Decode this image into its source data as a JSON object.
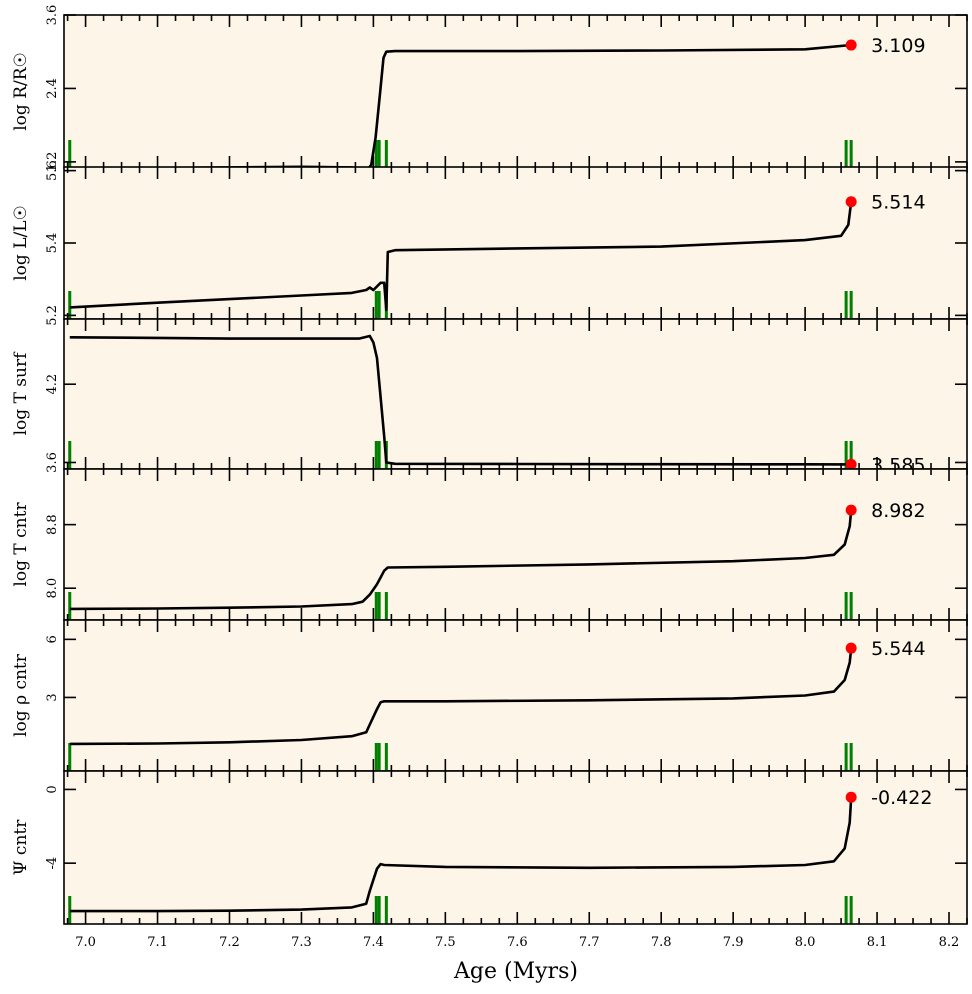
{
  "chart_data": {
    "type": "line",
    "xlabel": "Age (Myrs)",
    "xlim": [
      6.97,
      8.225
    ],
    "xticks": [
      7.0,
      7.1,
      7.2,
      7.3,
      7.4,
      7.5,
      7.6,
      7.7,
      7.8,
      7.9,
      8.0,
      8.1,
      8.2
    ],
    "xtick_labels": [
      "7.0",
      "7.1",
      "7.2",
      "7.3",
      "7.4",
      "7.5",
      "7.6",
      "7.7",
      "7.8",
      "7.9",
      "8.0",
      "8.1",
      "8.2"
    ],
    "background_color": "#fcf5e8",
    "line_color": "#000000",
    "marker_color": "#ff0000",
    "marker_lines_color": "#008000",
    "green_markers_x": [
      6.978,
      7.404,
      7.408,
      7.418,
      8.057,
      8.064
    ],
    "panels": [
      {
        "ylabel": "log R/R☉",
        "ylim": [
          1.1,
          3.6
        ],
        "yticks": [
          1.2,
          2.4,
          3.6
        ],
        "ytick_labels": [
          "1.2",
          "2.4",
          "3.6"
        ],
        "end_value_label": "3.109",
        "end_point": [
          8.064,
          3.109
        ],
        "x": [
          6.978,
          7.1,
          7.2,
          7.3,
          7.37,
          7.39,
          7.397,
          7.403,
          7.409,
          7.414,
          7.418,
          7.43,
          7.6,
          7.8,
          8.0,
          8.064
        ],
        "y": [
          1.09,
          1.1,
          1.11,
          1.12,
          1.11,
          1.05,
          1.15,
          1.6,
          2.3,
          2.9,
          3.0,
          3.01,
          3.01,
          3.02,
          3.04,
          3.109
        ]
      },
      {
        "ylabel": "log L/L☉",
        "ylim": [
          5.19,
          5.61
        ],
        "yticks": [
          5.2,
          5.4,
          5.6
        ],
        "ytick_labels": [
          "5.2",
          "5.4",
          "5.6"
        ],
        "end_value_label": "5.514",
        "end_point": [
          8.064,
          5.514
        ],
        "x": [
          6.978,
          7.1,
          7.2,
          7.3,
          7.37,
          7.39,
          7.395,
          7.4,
          7.41,
          7.415,
          7.418,
          7.42,
          7.43,
          7.6,
          7.8,
          8.0,
          8.05,
          8.06,
          8.064
        ],
        "y": [
          5.222,
          5.235,
          5.245,
          5.255,
          5.262,
          5.27,
          5.277,
          5.27,
          5.29,
          5.29,
          5.215,
          5.375,
          5.38,
          5.385,
          5.39,
          5.408,
          5.42,
          5.45,
          5.514
        ]
      },
      {
        "ylabel": "log T surf",
        "ylim": [
          3.55,
          4.7
        ],
        "yticks": [
          3.6,
          4.2
        ],
        "ytick_labels": [
          "3.6",
          "4.2"
        ],
        "end_value_label": "3.585",
        "end_point": [
          8.064,
          3.585
        ],
        "x": [
          6.978,
          7.1,
          7.2,
          7.3,
          7.38,
          7.395,
          7.4,
          7.405,
          7.41,
          7.415,
          7.418,
          7.43,
          7.6,
          7.8,
          8.0,
          8.064
        ],
        "y": [
          4.56,
          4.555,
          4.55,
          4.55,
          4.55,
          4.57,
          4.52,
          4.4,
          4.1,
          3.8,
          3.6,
          3.59,
          3.588,
          3.587,
          3.586,
          3.585
        ]
      },
      {
        "ylabel": "log T cntr",
        "ylim": [
          7.6,
          9.5
        ],
        "yticks": [
          8.0,
          8.8
        ],
        "ytick_labels": [
          "8.0",
          "8.8"
        ],
        "end_value_label": "8.982",
        "end_point": [
          8.064,
          8.982
        ],
        "x": [
          6.978,
          7.1,
          7.2,
          7.3,
          7.37,
          7.385,
          7.395,
          7.405,
          7.415,
          7.42,
          7.5,
          7.7,
          7.9,
          8.0,
          8.04,
          8.055,
          8.062,
          8.064
        ],
        "y": [
          7.74,
          7.745,
          7.755,
          7.77,
          7.8,
          7.83,
          7.92,
          8.05,
          8.22,
          8.26,
          8.27,
          8.3,
          8.34,
          8.38,
          8.42,
          8.55,
          8.78,
          8.982
        ]
      },
      {
        "ylabel": "log ρ cntr",
        "ylim": [
          -0.8,
          7.0
        ],
        "yticks": [
          3,
          6
        ],
        "ytick_labels": [
          "3",
          "6"
        ],
        "end_value_label": "5.544",
        "end_point": [
          8.064,
          5.544
        ],
        "x": [
          6.978,
          7.1,
          7.2,
          7.3,
          7.37,
          7.39,
          7.395,
          7.405,
          7.41,
          7.415,
          7.5,
          7.7,
          7.9,
          8.0,
          8.04,
          8.055,
          8.062,
          8.064
        ],
        "y": [
          0.6,
          0.62,
          0.68,
          0.8,
          1.0,
          1.2,
          1.6,
          2.4,
          2.75,
          2.8,
          2.8,
          2.85,
          2.95,
          3.1,
          3.3,
          3.9,
          4.8,
          5.544
        ]
      },
      {
        "ylabel": "Ψ cntr",
        "ylim": [
          -7.3,
          1.0
        ],
        "yticks": [
          0,
          -4
        ],
        "ytick_labels": [
          "0",
          "-4"
        ],
        "end_value_label": "-0.422",
        "end_point": [
          8.064,
          -0.422
        ],
        "x": [
          6.978,
          7.1,
          7.2,
          7.3,
          7.37,
          7.39,
          7.395,
          7.405,
          7.41,
          7.415,
          7.5,
          7.7,
          7.9,
          8.0,
          8.04,
          8.055,
          8.062,
          8.064
        ],
        "y": [
          -6.6,
          -6.6,
          -6.58,
          -6.52,
          -6.4,
          -6.2,
          -5.5,
          -4.3,
          -4.05,
          -4.1,
          -4.2,
          -4.25,
          -4.2,
          -4.1,
          -3.9,
          -3.2,
          -1.8,
          -0.422
        ]
      }
    ]
  }
}
